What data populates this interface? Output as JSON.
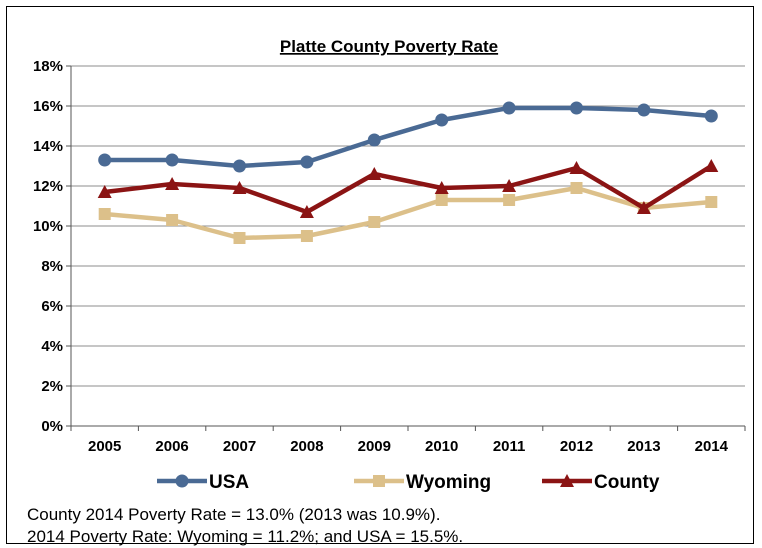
{
  "chart_data": {
    "type": "line",
    "title": "Platte County Poverty Rate",
    "categories": [
      "2005",
      "2006",
      "2007",
      "2008",
      "2009",
      "2010",
      "2011",
      "2012",
      "2013",
      "2014"
    ],
    "ylim": [
      0,
      18
    ],
    "yticks": [
      "0%",
      "2%",
      "4%",
      "6%",
      "8%",
      "10%",
      "12%",
      "14%",
      "16%",
      "18%"
    ],
    "grid": true,
    "legend_position": "bottom",
    "series": [
      {
        "name": "USA",
        "color": "#4a6a94",
        "marker": "circle",
        "values": [
          13.3,
          13.3,
          13.0,
          13.2,
          14.3,
          15.3,
          15.9,
          15.9,
          15.8,
          15.5
        ]
      },
      {
        "name": "Wyoming",
        "color": "#dcc08a",
        "marker": "square",
        "values": [
          10.6,
          10.3,
          9.4,
          9.5,
          10.2,
          11.3,
          11.3,
          11.9,
          10.9,
          11.2
        ]
      },
      {
        "name": "County",
        "color": "#8b1414",
        "marker": "triangle",
        "values": [
          11.7,
          12.1,
          11.9,
          10.7,
          12.6,
          11.9,
          12.0,
          12.9,
          10.9,
          13.0
        ]
      }
    ]
  },
  "notes": {
    "line1": "County 2014 Poverty Rate = 13.0% (2013 was 10.9%).",
    "line2": "2014 Poverty Rate: Wyoming = 11.2%; and USA = 15.5%."
  }
}
